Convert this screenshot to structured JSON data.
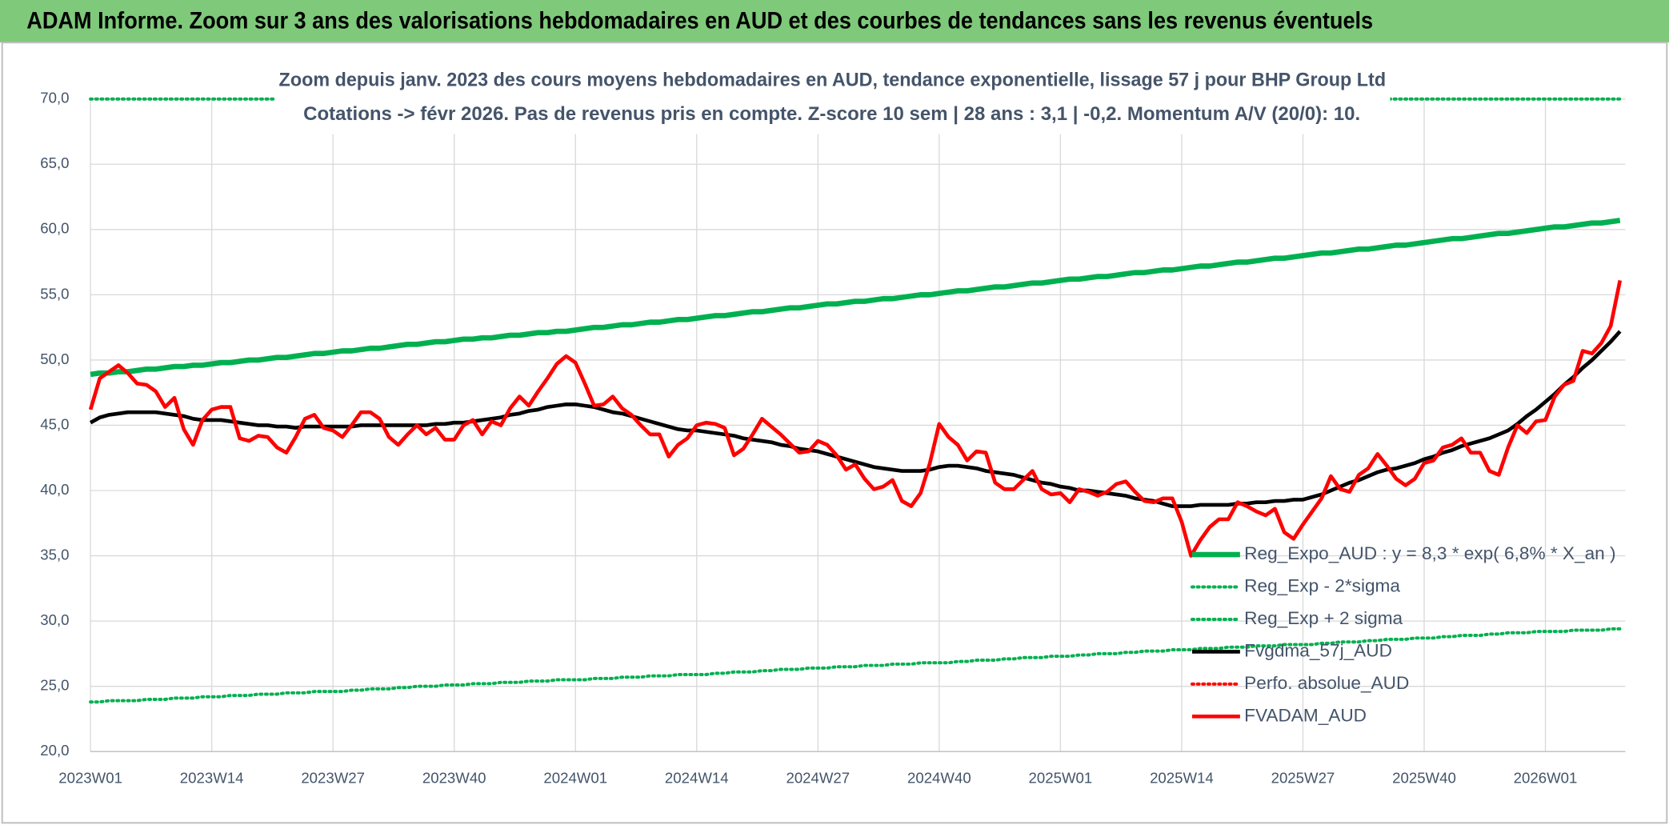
{
  "chart_data": {
    "type": "line",
    "title": "ADAM Informe. Zoom sur 3 ans des valorisations hebdomadaires en AUD et des courbes de tendances sans les revenus éventuels",
    "subtitle": [
      "Zoom depuis janv. 2023 des cours moyens hebdomadaires en AUD, tendance exponentielle, lissage 57 j pour BHP Group Ltd",
      "Cotations -> févr 2026. Pas de revenus pris en compte. Z-score 10 sem | 28 ans : 3,1 | -0,2. Momentum A/V (20/0): 10."
    ],
    "categories": [
      "2023W01",
      null,
      null,
      null,
      null,
      null,
      null,
      null,
      null,
      null,
      null,
      null,
      null,
      "2023W14",
      null,
      null,
      null,
      null,
      null,
      null,
      null,
      null,
      null,
      null,
      null,
      null,
      "2023W27",
      null,
      null,
      null,
      null,
      null,
      null,
      null,
      null,
      null,
      null,
      null,
      null,
      "2023W40",
      null,
      null,
      null,
      null,
      null,
      null,
      null,
      null,
      null,
      null,
      null,
      null,
      "2024W01",
      null,
      null,
      null,
      null,
      null,
      null,
      null,
      null,
      null,
      null,
      null,
      null,
      "2024W14",
      null,
      null,
      null,
      null,
      null,
      null,
      null,
      null,
      null,
      null,
      null,
      null,
      "2024W27",
      null,
      null,
      null,
      null,
      null,
      null,
      null,
      null,
      null,
      null,
      null,
      null,
      "2024W40",
      null,
      null,
      null,
      null,
      null,
      null,
      null,
      null,
      null,
      null,
      null,
      null,
      "2025W01",
      null,
      null,
      null,
      null,
      null,
      null,
      null,
      null,
      null,
      null,
      null,
      null,
      "2025W14",
      null,
      null,
      null,
      null,
      null,
      null,
      null,
      null,
      null,
      null,
      null,
      null,
      "2025W27",
      null,
      null,
      null,
      null,
      null,
      null,
      null,
      null,
      null,
      null,
      null,
      null,
      "2025W40",
      null,
      null,
      null,
      null,
      null,
      null,
      null,
      null,
      null,
      null,
      null,
      null,
      "2026W01",
      null,
      null,
      null,
      null,
      null,
      null,
      null,
      null
    ],
    "series": [
      {
        "name": "Reg_Expo_AUD : y = 8,3 * exp( 6,8% *  X_an )",
        "color": "#00b050",
        "style": "solid",
        "values": [
          48.9,
          49.0,
          49.0,
          49.1,
          49.1,
          49.2,
          49.3,
          49.3,
          49.4,
          49.5,
          49.5,
          49.6,
          49.6,
          49.7,
          49.8,
          49.8,
          49.9,
          50.0,
          50.0,
          50.1,
          50.2,
          50.2,
          50.3,
          50.4,
          50.5,
          50.5,
          50.6,
          50.7,
          50.7,
          50.8,
          50.9,
          50.9,
          51.0,
          51.1,
          51.2,
          51.2,
          51.3,
          51.4,
          51.4,
          51.5,
          51.6,
          51.6,
          51.7,
          51.7,
          51.8,
          51.9,
          51.9,
          52.0,
          52.1,
          52.1,
          52.2,
          52.2,
          52.3,
          52.4,
          52.5,
          52.5,
          52.6,
          52.7,
          52.7,
          52.8,
          52.9,
          52.9,
          53.0,
          53.1,
          53.1,
          53.2,
          53.3,
          53.4,
          53.4,
          53.5,
          53.6,
          53.7,
          53.7,
          53.8,
          53.9,
          54.0,
          54.0,
          54.1,
          54.2,
          54.3,
          54.3,
          54.4,
          54.5,
          54.5,
          54.6,
          54.7,
          54.7,
          54.8,
          54.9,
          55.0,
          55.0,
          55.1,
          55.2,
          55.3,
          55.3,
          55.4,
          55.5,
          55.6,
          55.6,
          55.7,
          55.8,
          55.9,
          55.9,
          56.0,
          56.1,
          56.2,
          56.2,
          56.3,
          56.4,
          56.4,
          56.5,
          56.6,
          56.7,
          56.7,
          56.8,
          56.9,
          56.9,
          57.0,
          57.1,
          57.2,
          57.2,
          57.3,
          57.4,
          57.5,
          57.5,
          57.6,
          57.7,
          57.8,
          57.8,
          57.9,
          58.0,
          58.1,
          58.2,
          58.2,
          58.3,
          58.4,
          58.5,
          58.5,
          58.6,
          58.7,
          58.8,
          58.8,
          58.9,
          59.0,
          59.1,
          59.2,
          59.3,
          59.3,
          59.4,
          59.5,
          59.6,
          59.7,
          59.7,
          59.8,
          59.9,
          60.0,
          60.1,
          60.2,
          60.2,
          60.3,
          60.4,
          60.5,
          60.5,
          60.6,
          60.7
        ]
      },
      {
        "name": "Reg_Exp - 2*sigma",
        "color": "#00b050",
        "style": "dotted",
        "values": [
          23.8,
          23.8,
          23.9,
          23.9,
          23.9,
          23.9,
          24.0,
          24.0,
          24.0,
          24.1,
          24.1,
          24.1,
          24.2,
          24.2,
          24.2,
          24.3,
          24.3,
          24.3,
          24.4,
          24.4,
          24.4,
          24.5,
          24.5,
          24.5,
          24.6,
          24.6,
          24.6,
          24.6,
          24.7,
          24.7,
          24.8,
          24.8,
          24.8,
          24.9,
          24.9,
          25.0,
          25.0,
          25.0,
          25.1,
          25.1,
          25.1,
          25.2,
          25.2,
          25.2,
          25.3,
          25.3,
          25.3,
          25.4,
          25.4,
          25.4,
          25.5,
          25.5,
          25.5,
          25.5,
          25.6,
          25.6,
          25.6,
          25.7,
          25.7,
          25.7,
          25.8,
          25.8,
          25.8,
          25.9,
          25.9,
          25.9,
          25.9,
          26.0,
          26.0,
          26.1,
          26.1,
          26.1,
          26.2,
          26.2,
          26.3,
          26.3,
          26.3,
          26.4,
          26.4,
          26.4,
          26.5,
          26.5,
          26.5,
          26.6,
          26.6,
          26.6,
          26.7,
          26.7,
          26.7,
          26.8,
          26.8,
          26.8,
          26.8,
          26.9,
          26.9,
          27.0,
          27.0,
          27.0,
          27.1,
          27.1,
          27.2,
          27.2,
          27.2,
          27.3,
          27.3,
          27.3,
          27.4,
          27.4,
          27.5,
          27.5,
          27.5,
          27.6,
          27.6,
          27.7,
          27.7,
          27.7,
          27.8,
          27.8,
          27.8,
          27.9,
          27.9,
          27.9,
          28.0,
          28.0,
          28.0,
          28.1,
          28.1,
          28.1,
          28.2,
          28.2,
          28.2,
          28.2,
          28.3,
          28.3,
          28.4,
          28.4,
          28.4,
          28.5,
          28.5,
          28.6,
          28.6,
          28.6,
          28.7,
          28.7,
          28.7,
          28.8,
          28.8,
          28.9,
          28.9,
          28.9,
          29.0,
          29.0,
          29.1,
          29.1,
          29.1,
          29.2,
          29.2,
          29.2,
          29.2,
          29.3,
          29.3,
          29.3,
          29.3,
          29.4,
          29.4
        ]
      },
      {
        "name": "Reg_Exp + 2 sigma",
        "color": "#00b050",
        "style": "dotted",
        "values": [
          70,
          70,
          70,
          70,
          70,
          70,
          70,
          70,
          70,
          70,
          70,
          70,
          70,
          70,
          70,
          70,
          70,
          70,
          70,
          70,
          70,
          70,
          70,
          70,
          70,
          70,
          70,
          70,
          70,
          70,
          70,
          70,
          70,
          70,
          70,
          70,
          70,
          70,
          70,
          70,
          70,
          70,
          70,
          70,
          70,
          70,
          70,
          70,
          70,
          70,
          70,
          70,
          70,
          70,
          70,
          70,
          70,
          70,
          70,
          70,
          70,
          70,
          70,
          70,
          70,
          70,
          70,
          70,
          70,
          70,
          70,
          70,
          70,
          70,
          70,
          70,
          70,
          70,
          70,
          70,
          70,
          70,
          70,
          70,
          70,
          70,
          70,
          70,
          70,
          70,
          70,
          70,
          70,
          70,
          70,
          70,
          70,
          70,
          70,
          70,
          70,
          70,
          70,
          70,
          70,
          70,
          70,
          70,
          70,
          70,
          70,
          70,
          70,
          70,
          70,
          70,
          70,
          70,
          70,
          70,
          70,
          70,
          70,
          70,
          70,
          70,
          70,
          70,
          70,
          70,
          70,
          70,
          70,
          70,
          70,
          70,
          70,
          70,
          70,
          70,
          70,
          70,
          70,
          70,
          70,
          70,
          70,
          70,
          70,
          70,
          70,
          70,
          70,
          70,
          70,
          70,
          70,
          70,
          70,
          70,
          70,
          70,
          70,
          70,
          70
        ]
      },
      {
        "name": "Fvgdma_57j_AUD",
        "color": "#000000",
        "style": "solid",
        "values": [
          45.2,
          45.6,
          45.8,
          45.9,
          46.0,
          46.0,
          46.0,
          46.0,
          45.9,
          45.8,
          45.7,
          45.5,
          45.4,
          45.4,
          45.4,
          45.3,
          45.2,
          45.1,
          45.0,
          45.0,
          44.9,
          44.9,
          44.8,
          44.9,
          44.9,
          44.9,
          44.9,
          44.9,
          44.9,
          45.0,
          45.0,
          45.0,
          45.0,
          45.0,
          45.0,
          45.0,
          45.0,
          45.1,
          45.1,
          45.2,
          45.2,
          45.3,
          45.4,
          45.5,
          45.6,
          45.8,
          45.9,
          46.1,
          46.2,
          46.4,
          46.5,
          46.6,
          46.6,
          46.5,
          46.4,
          46.2,
          46.0,
          45.9,
          45.7,
          45.5,
          45.3,
          45.1,
          44.9,
          44.7,
          44.6,
          44.6,
          44.5,
          44.4,
          44.3,
          44.2,
          44.0,
          43.9,
          43.8,
          43.7,
          43.5,
          43.4,
          43.2,
          43.1,
          43.0,
          42.8,
          42.6,
          42.4,
          42.2,
          42.0,
          41.8,
          41.7,
          41.6,
          41.5,
          41.5,
          41.5,
          41.6,
          41.8,
          41.9,
          41.9,
          41.8,
          41.7,
          41.5,
          41.4,
          41.3,
          41.2,
          41.0,
          40.8,
          40.6,
          40.5,
          40.3,
          40.2,
          40.0,
          40.0,
          39.9,
          39.8,
          39.7,
          39.6,
          39.4,
          39.3,
          39.2,
          39.0,
          38.8,
          38.8,
          38.8,
          38.9,
          38.9,
          38.9,
          38.9,
          39.0,
          39.0,
          39.1,
          39.1,
          39.2,
          39.2,
          39.3,
          39.3,
          39.5,
          39.7,
          40.0,
          40.3,
          40.6,
          40.8,
          41.1,
          41.4,
          41.6,
          41.7,
          41.9,
          42.1,
          42.4,
          42.6,
          42.9,
          43.1,
          43.4,
          43.6,
          43.8,
          44.0,
          44.3,
          44.6,
          45.1,
          45.7,
          46.2,
          46.8,
          47.4,
          48.1,
          48.7,
          49.4,
          50.0,
          50.7,
          51.4,
          52.2
        ]
      },
      {
        "name": "Perfo. absolue_AUD",
        "color": "#ff0000",
        "style": "dotted",
        "values": [
          null,
          null,
          null,
          null,
          null,
          null,
          null,
          null,
          null,
          null,
          null,
          null,
          null,
          null,
          null,
          null,
          null,
          null,
          null,
          null,
          null,
          null,
          null,
          null,
          null,
          null,
          null,
          null,
          null,
          null,
          null,
          null,
          null,
          null,
          null,
          null,
          null,
          null,
          null,
          null,
          null,
          null,
          null,
          null,
          null,
          null,
          null,
          null,
          null,
          null,
          null,
          null,
          null,
          null,
          null,
          null,
          null,
          null,
          null,
          null,
          null,
          null,
          null,
          null,
          null,
          null,
          null,
          null,
          null,
          null,
          null,
          null,
          null,
          null,
          null,
          null,
          null,
          null,
          null,
          null,
          null,
          null,
          null,
          null,
          null,
          null,
          null,
          null,
          null,
          null,
          null,
          null,
          null,
          null,
          null,
          null,
          null,
          null,
          null,
          null,
          null,
          null,
          null,
          null,
          null,
          null,
          null,
          null,
          null,
          null,
          null,
          null,
          null,
          null,
          null,
          null,
          null,
          null,
          null,
          null,
          null,
          null,
          null,
          null,
          null,
          null,
          null,
          null,
          null,
          null,
          null,
          null,
          null,
          null,
          null,
          null,
          null,
          null,
          null,
          null,
          null,
          null,
          null,
          null,
          null,
          null,
          null,
          null,
          null,
          null,
          null,
          null,
          null,
          null,
          null,
          null,
          null,
          null,
          null,
          null,
          null,
          null,
          null,
          null,
          null
        ]
      },
      {
        "name": "FVADAM_AUD",
        "color": "#ff0000",
        "style": "solid",
        "values": [
          46.2,
          48.6,
          49.1,
          49.6,
          49.0,
          48.2,
          48.1,
          47.6,
          46.4,
          47.1,
          44.7,
          43.5,
          45.4,
          46.2,
          46.4,
          46.4,
          44.0,
          43.8,
          44.2,
          44.1,
          43.3,
          42.9,
          44.1,
          45.5,
          45.8,
          44.8,
          44.6,
          44.1,
          45.0,
          46.0,
          46.0,
          45.5,
          44.1,
          43.5,
          44.3,
          45.0,
          44.3,
          44.8,
          43.9,
          43.9,
          45.0,
          45.4,
          44.3,
          45.3,
          45.0,
          46.3,
          47.2,
          46.5,
          47.6,
          48.6,
          49.7,
          50.3,
          49.8,
          48.2,
          46.5,
          46.6,
          47.2,
          46.3,
          45.8,
          45.0,
          44.3,
          44.3,
          42.6,
          43.5,
          44.0,
          45.0,
          45.2,
          45.1,
          44.8,
          42.7,
          43.2,
          44.3,
          45.5,
          44.9,
          44.3,
          43.6,
          42.9,
          43.0,
          43.8,
          43.5,
          42.7,
          41.6,
          42.0,
          40.9,
          40.1,
          40.3,
          40.8,
          39.2,
          38.8,
          39.8,
          42.1,
          45.1,
          44.1,
          43.5,
          42.3,
          43.0,
          42.9,
          40.6,
          40.1,
          40.1,
          40.8,
          41.5,
          40.1,
          39.7,
          39.8,
          39.1,
          40.1,
          39.9,
          39.6,
          39.9,
          40.5,
          40.7,
          39.9,
          39.2,
          39.1,
          39.4,
          39.4,
          37.6,
          35.0,
          36.2,
          37.2,
          37.8,
          37.8,
          39.1,
          38.8,
          38.4,
          38.1,
          38.6,
          36.8,
          36.3,
          37.4,
          38.4,
          39.4,
          41.1,
          40.1,
          39.9,
          41.2,
          41.7,
          42.8,
          41.9,
          40.9,
          40.4,
          40.9,
          42.1,
          42.3,
          43.3,
          43.5,
          44.0,
          42.9,
          42.9,
          41.5,
          41.2,
          43.3,
          45.0,
          44.4,
          45.3,
          45.4,
          47.2,
          48.1,
          48.4,
          50.7,
          50.5,
          51.3,
          52.6,
          56.1
        ]
      }
    ],
    "ylim": [
      20,
      70
    ],
    "yticks": [
      {
        "value": 20,
        "label": "20,0"
      },
      {
        "value": 25,
        "label": "25,0"
      },
      {
        "value": 30,
        "label": "30,0"
      },
      {
        "value": 35,
        "label": "35,0"
      },
      {
        "value": 40,
        "label": "40,0"
      },
      {
        "value": 45,
        "label": "45,0"
      },
      {
        "value": 50,
        "label": "50,0"
      },
      {
        "value": 55,
        "label": "55,0"
      },
      {
        "value": 60,
        "label": "60,0"
      },
      {
        "value": 65,
        "label": "65,0"
      },
      {
        "value": 70,
        "label": "70,0"
      }
    ],
    "grid": true,
    "legend": "lower right"
  }
}
